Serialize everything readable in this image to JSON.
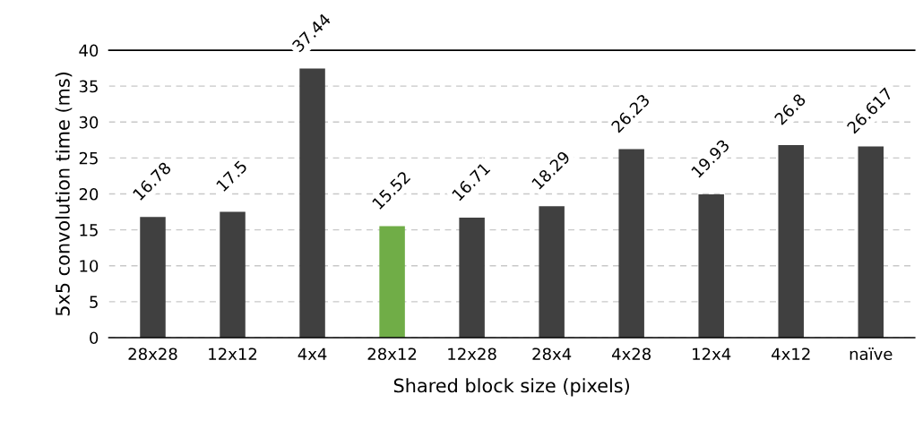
{
  "chart_data": {
    "type": "bar",
    "xlabel": "Shared block size (pixels)",
    "ylabel": "5x5 convolution time (ms)",
    "categories": [
      "28x28",
      "12x12",
      "4x4",
      "28x12",
      "12x28",
      "28x4",
      "4x28",
      "12x4",
      "4x12",
      "naïve"
    ],
    "values": [
      16.78,
      17.5,
      37.44,
      15.52,
      16.71,
      18.29,
      26.23,
      19.93,
      26.8,
      26.617
    ],
    "colors": [
      "#404040",
      "#404040",
      "#404040",
      "#70ad47",
      "#404040",
      "#404040",
      "#404040",
      "#404040",
      "#404040",
      "#404040"
    ],
    "ylim": [
      0,
      40
    ],
    "yticks": [
      0,
      5,
      10,
      15,
      20,
      25,
      30,
      35,
      40
    ],
    "grid": "y",
    "data_labels": true
  }
}
